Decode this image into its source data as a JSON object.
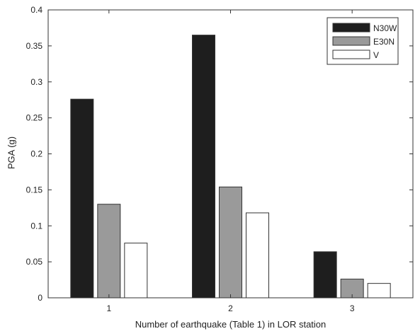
{
  "chart_data": {
    "type": "bar",
    "categories": [
      "1",
      "2",
      "3"
    ],
    "series": [
      {
        "name": "N30W",
        "values": [
          0.276,
          0.365,
          0.064
        ],
        "color": "#1e1e1e"
      },
      {
        "name": "E30N",
        "values": [
          0.13,
          0.154,
          0.026
        ],
        "color": "#9a9a9a"
      },
      {
        "name": "V",
        "values": [
          0.076,
          0.118,
          0.02
        ],
        "color": "#ffffff"
      }
    ],
    "xlabel": "Number of earthquake (Table 1) in LOR station",
    "ylabel": "PGA (g)",
    "ylim": [
      0,
      0.4
    ],
    "yticks": [
      "0",
      "0.05",
      "0.1",
      "0.15",
      "0.2",
      "0.25",
      "0.3",
      "0.35",
      "0.4"
    ],
    "grid": false,
    "legend_position": "top-right"
  }
}
